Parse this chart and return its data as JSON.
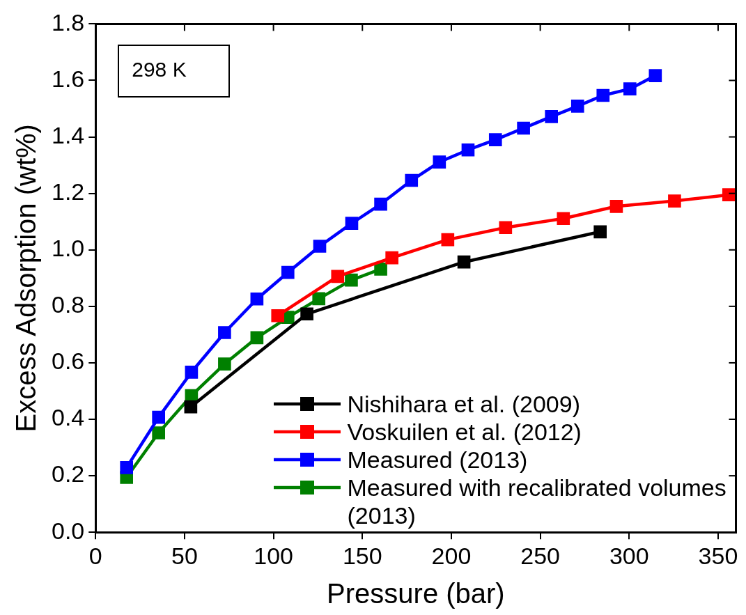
{
  "chart_data": {
    "type": "line",
    "xlabel": "Pressure (bar)",
    "ylabel": "Excess Adsorption (wt%)",
    "xlim": [
      0,
      360
    ],
    "xticks": [
      0,
      50,
      100,
      150,
      200,
      250,
      300,
      350
    ],
    "ylim": [
      0,
      1.8
    ],
    "yticks": [
      {
        "value": 0,
        "label": "0.0"
      },
      0.2,
      0.4,
      0.6,
      0.8,
      {
        "value": 1,
        "label": "1.0"
      },
      1.2,
      1.4,
      1.6,
      1.8
    ],
    "grid": false,
    "legend": "bottom right",
    "marker": "square",
    "line_style": "solid",
    "annotations": [
      "298 K"
    ],
    "series": [
      {
        "name": "Nishihara et al. (2009)",
        "color": "#000000",
        "x": [
          53.5,
          118.8,
          207.1,
          283.7
        ],
        "values": [
          0.444,
          0.773,
          0.957,
          1.064
        ]
      },
      {
        "name": "Voskuilen et al. (2012)",
        "color": "#ff0000",
        "x": [
          102.4,
          136.1,
          166.6,
          198,
          230.5,
          263,
          292.8,
          325.5,
          356
        ],
        "values": [
          0.767,
          0.906,
          0.972,
          1.036,
          1.079,
          1.111,
          1.154,
          1.173,
          1.195
        ]
      },
      {
        "name": "Measured (2013)",
        "color": "#0000ff",
        "x": [
          17.4,
          35.4,
          53.9,
          72.5,
          90.7,
          108.1,
          126,
          144,
          160.3,
          177.6,
          193.3,
          209.4,
          224.8,
          240.6,
          256.3,
          271,
          285.3,
          300.4,
          314.7
        ],
        "values": [
          0.229,
          0.407,
          0.567,
          0.707,
          0.826,
          0.92,
          1.013,
          1.094,
          1.162,
          1.246,
          1.311,
          1.354,
          1.39,
          1.431,
          1.472,
          1.509,
          1.547,
          1.57,
          1.617
        ]
      },
      {
        "name": "Measured with recalibrated volumes (2013)",
        "color": "#008000",
        "x": [
          17.4,
          35.4,
          53.9,
          72.5,
          90.7,
          108.1,
          125.5,
          143.8,
          160.3
        ],
        "values": [
          0.194,
          0.352,
          0.484,
          0.596,
          0.689,
          0.761,
          0.827,
          0.893,
          0.932
        ]
      }
    ]
  }
}
